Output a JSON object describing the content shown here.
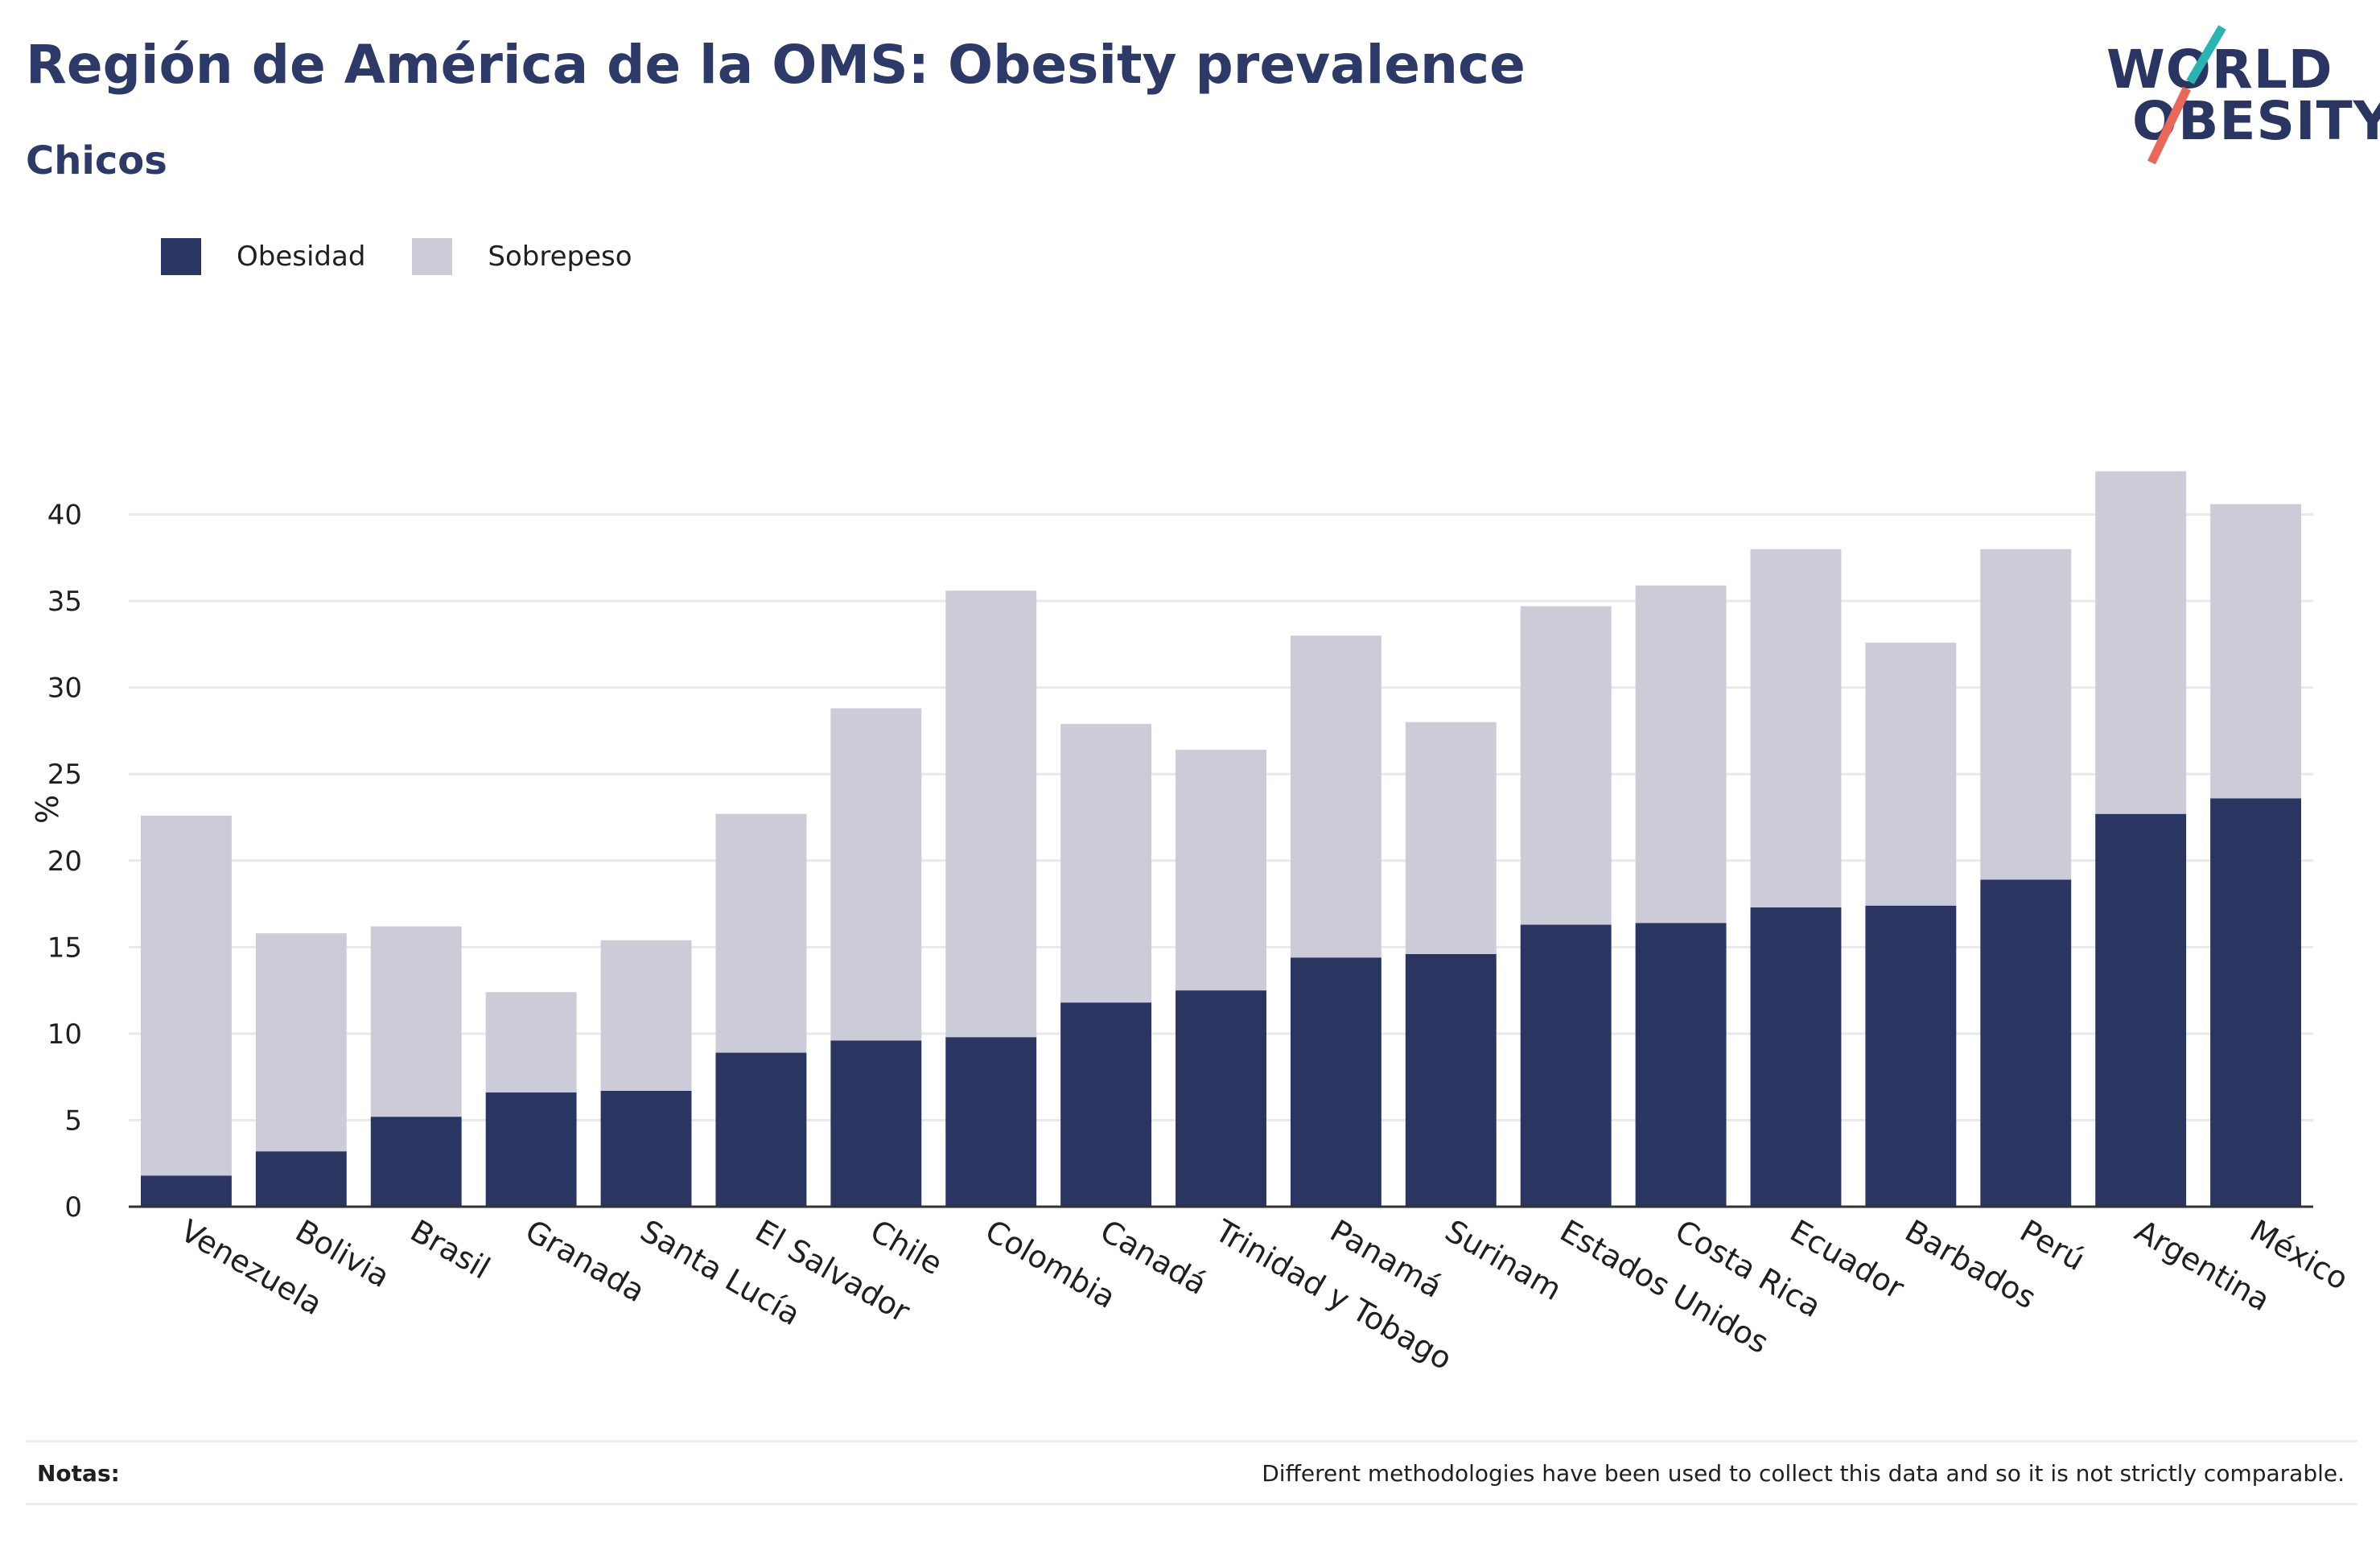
{
  "header": {
    "title": "Región de América de la OMS: Obesity prevalence",
    "subtitle": "Chicos"
  },
  "logo": {
    "line1": "WORLD",
    "line2": "OBESITY",
    "colors": {
      "text": "#2a3561",
      "slash_top": "#2bb3b1",
      "slash_bottom": "#e8685a"
    }
  },
  "legend": {
    "items": [
      {
        "label": "Obesidad",
        "color": "#2a3561"
      },
      {
        "label": "Sobrepeso",
        "color": "#cbccd8"
      }
    ]
  },
  "chart_data": {
    "type": "bar",
    "stacked": true,
    "ylabel": "%",
    "ylim": [
      0,
      45
    ],
    "yticks": [
      0,
      5,
      10,
      15,
      20,
      25,
      30,
      35,
      40
    ],
    "grid": true,
    "legend_position": "top-left",
    "categories": [
      "Venezuela",
      "Bolivia",
      "Brasil",
      "Granada",
      "Santa Lucía",
      "El Salvador",
      "Chile",
      "Colombia",
      "Canadá",
      "Trinidad y Tobago",
      "Panamá",
      "Surinam",
      "Estados Unidos",
      "Costa Rica",
      "Ecuador",
      "Barbados",
      "Perú",
      "Argentina",
      "México"
    ],
    "series": [
      {
        "name": "Obesidad",
        "color": "#2a3561",
        "values": [
          1.8,
          3.2,
          5.2,
          6.6,
          6.7,
          8.9,
          9.6,
          9.8,
          11.8,
          12.5,
          14.4,
          14.6,
          16.3,
          16.4,
          17.3,
          17.4,
          18.9,
          22.7,
          23.6
        ]
      },
      {
        "name": "Sobrepeso",
        "color": "#cbccd8",
        "values": [
          20.8,
          12.6,
          11.0,
          5.8,
          8.7,
          13.8,
          19.2,
          25.8,
          16.1,
          13.9,
          18.6,
          13.4,
          18.4,
          19.5,
          20.7,
          15.2,
          19.1,
          19.8,
          17.0
        ]
      }
    ]
  },
  "notes": {
    "label": "Notas:",
    "text": "Different methodologies have been used to collect this data and so it is not strictly comparable."
  }
}
